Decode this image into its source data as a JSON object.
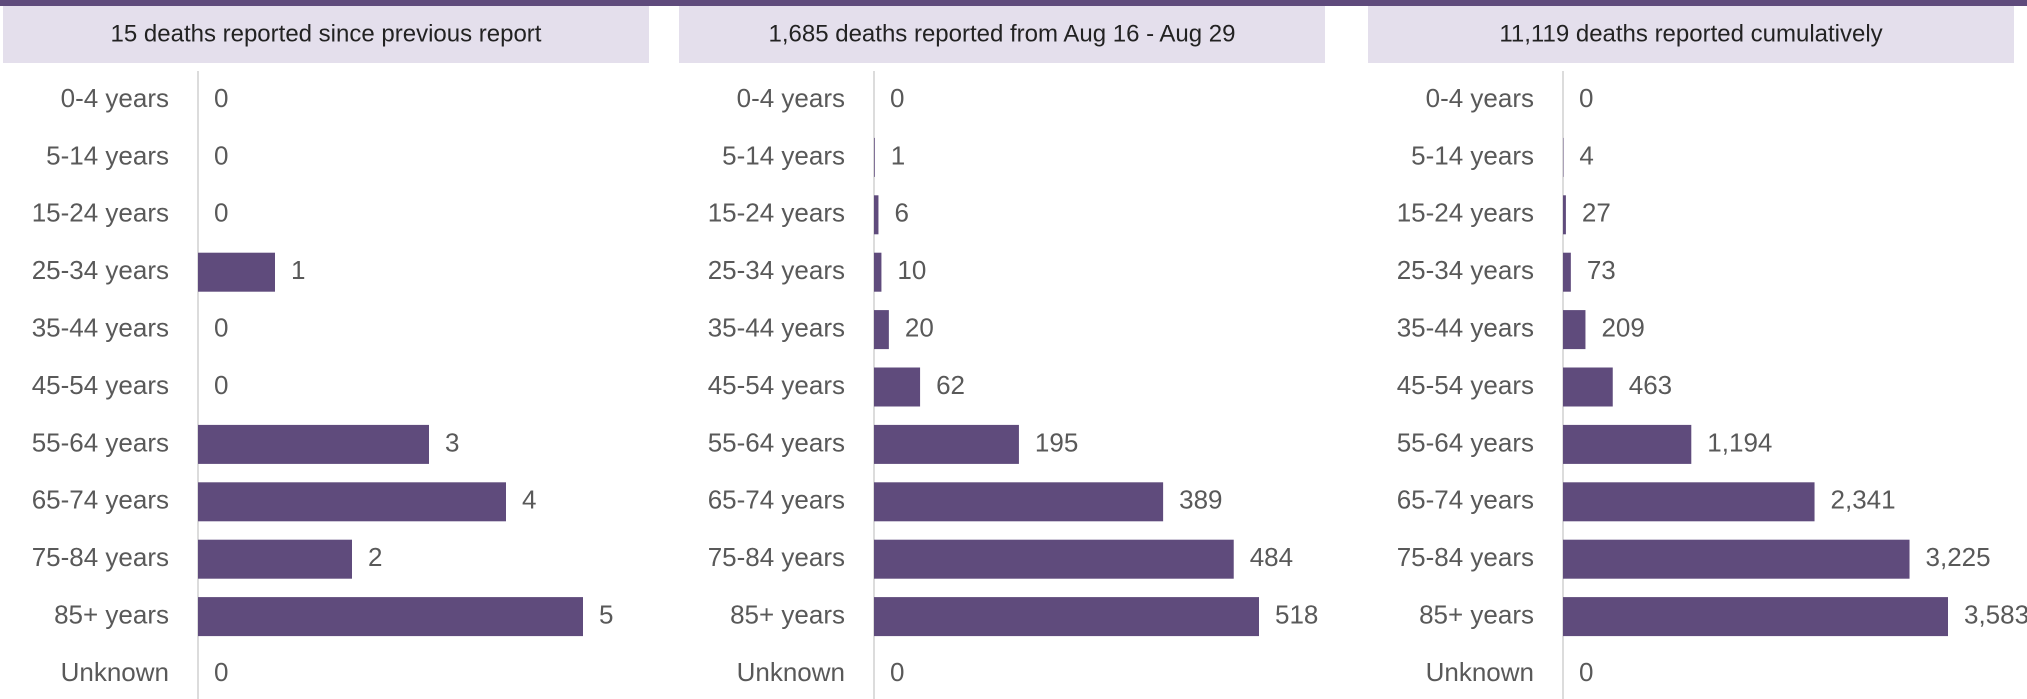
{
  "chart_data": [
    {
      "type": "bar",
      "title": "15 deaths reported since previous report",
      "categories": [
        "0-4 years",
        "5-14 years",
        "15-24 years",
        "25-34 years",
        "35-44 years",
        "45-54 years",
        "55-64 years",
        "65-74 years",
        "75-84 years",
        "85+ years",
        "Unknown"
      ],
      "values": [
        0,
        0,
        0,
        1,
        0,
        0,
        3,
        4,
        2,
        5,
        0
      ],
      "color": "#5f4b7c"
    },
    {
      "type": "bar",
      "title": "1,685 deaths reported from Aug 16 - Aug 29",
      "categories": [
        "0-4 years",
        "5-14 years",
        "15-24 years",
        "25-34 years",
        "35-44 years",
        "45-54 years",
        "55-64 years",
        "65-74 years",
        "75-84 years",
        "85+ years",
        "Unknown"
      ],
      "values": [
        0,
        1,
        6,
        10,
        20,
        62,
        195,
        389,
        484,
        518,
        0
      ],
      "color": "#5f4b7c"
    },
    {
      "type": "bar",
      "title": "11,119 deaths reported cumulatively",
      "categories": [
        "0-4 years",
        "5-14 years",
        "15-24 years",
        "25-34 years",
        "35-44 years",
        "45-54 years",
        "55-64 years",
        "65-74 years",
        "75-84 years",
        "85+ years",
        "Unknown"
      ],
      "values": [
        0,
        4,
        27,
        73,
        209,
        463,
        1194,
        2341,
        3225,
        3583,
        0
      ],
      "value_labels": [
        "0",
        "4",
        "27",
        "73",
        "209",
        "463",
        "1,194",
        "2,341",
        "3,225",
        "3,583",
        "0"
      ],
      "color": "#5f4b7c"
    }
  ]
}
